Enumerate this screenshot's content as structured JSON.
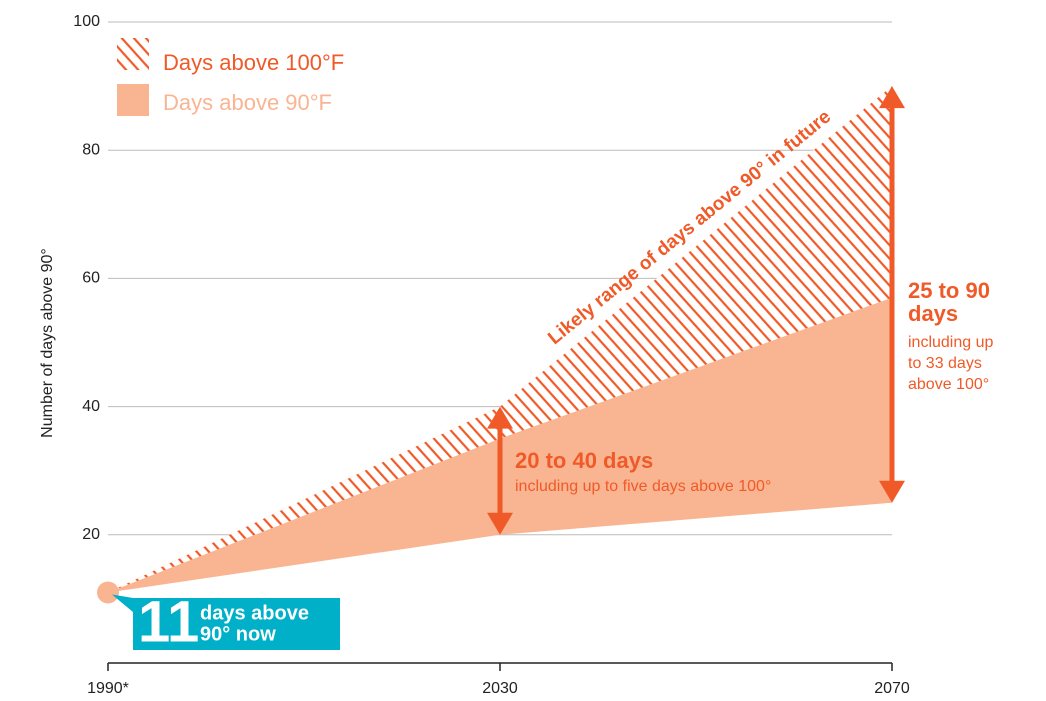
{
  "chart_data": {
    "type": "area-range",
    "y_label": "Number of days above 90°",
    "categories": [
      "1990*",
      "2030",
      "2070"
    ],
    "ylim": [
      0,
      100
    ],
    "yticks": [
      20,
      40,
      60,
      80,
      100
    ],
    "grid": true,
    "legend": "top-left",
    "series": [
      {
        "name": "Days above 90°F",
        "color": "#f9b592",
        "low": [
          11,
          20,
          25
        ],
        "high": [
          11,
          40,
          90
        ]
      },
      {
        "name": "Days above 100°F",
        "color": "#f05a28",
        "pattern": "hatch",
        "low": [
          11,
          35,
          57
        ],
        "high": [
          11,
          40,
          90
        ]
      }
    ],
    "annotations": {
      "trend": "Likely range of days above 90° in future",
      "mid": {
        "lines": [
          "20 to 40 days"
        ],
        "detail": [
          "including up to five days above 100°"
        ]
      },
      "end": {
        "lines": [
          "25 to 90",
          "days"
        ],
        "detail": [
          "including up",
          "to 33 days",
          "above 100°"
        ]
      },
      "now": {
        "number": "11",
        "lines": [
          "days above",
          "90° now"
        ],
        "value": 11,
        "color": "#00afc8"
      }
    }
  }
}
